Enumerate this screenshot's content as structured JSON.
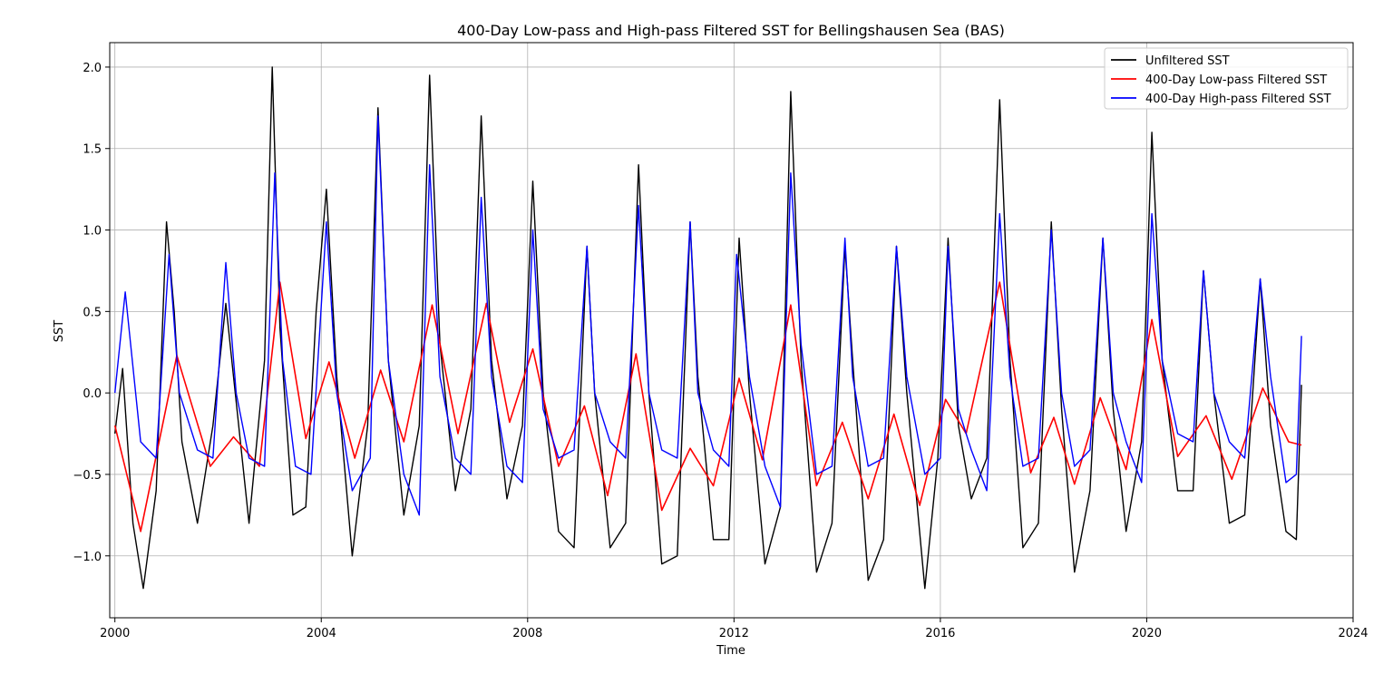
{
  "chart_data": {
    "type": "line",
    "title": "400-Day Low-pass and High-pass Filtered SST for Bellingshausen Sea (BAS)",
    "xlabel": "Time",
    "ylabel": "SST",
    "xlim": [
      1999.9,
      2024
    ],
    "ylim": [
      -1.38,
      2.15
    ],
    "xticks": [
      2000,
      2004,
      2008,
      2012,
      2016,
      2020,
      2024
    ],
    "xtick_labels": [
      "2000",
      "2004",
      "2008",
      "2012",
      "2016",
      "2020",
      "2024"
    ],
    "yticks": [
      -1.0,
      -0.5,
      0.0,
      0.5,
      1.0,
      1.5,
      2.0
    ],
    "ytick_labels": [
      "−1.0",
      "−0.5",
      "0.0",
      "0.5",
      "1.0",
      "1.5",
      "2.0"
    ],
    "grid": true,
    "legend_position": "upper-right",
    "series": [
      {
        "name": "Unfiltered SST",
        "color": "#000000",
        "x": [
          2000.0,
          2000.15,
          2000.35,
          2000.55,
          2000.8,
          2001.0,
          2001.15,
          2001.3,
          2001.6,
          2001.9,
          2002.15,
          2002.3,
          2002.6,
          2002.9,
          2003.05,
          2003.2,
          2003.45,
          2003.7,
          2003.9,
          2004.1,
          2004.3,
          2004.6,
          2004.9,
          2005.1,
          2005.3,
          2005.6,
          2005.9,
          2006.1,
          2006.3,
          2006.6,
          2006.9,
          2007.1,
          2007.3,
          2007.6,
          2007.9,
          2008.1,
          2008.3,
          2008.6,
          2008.9,
          2009.15,
          2009.3,
          2009.6,
          2009.9,
          2010.15,
          2010.35,
          2010.6,
          2010.9,
          2011.15,
          2011.3,
          2011.6,
          2011.9,
          2012.1,
          2012.3,
          2012.6,
          2012.9,
          2013.1,
          2013.3,
          2013.6,
          2013.9,
          2014.15,
          2014.3,
          2014.6,
          2014.9,
          2015.15,
          2015.35,
          2015.7,
          2015.95,
          2016.15,
          2016.35,
          2016.6,
          2016.9,
          2017.15,
          2017.35,
          2017.6,
          2017.9,
          2018.15,
          2018.35,
          2018.6,
          2018.9,
          2019.15,
          2019.35,
          2019.6,
          2019.9,
          2020.1,
          2020.3,
          2020.6,
          2020.9,
          2021.1,
          2021.3,
          2021.6,
          2021.9,
          2022.2,
          2022.4,
          2022.7,
          2022.9,
          2023.0
        ],
        "values": [
          -0.25,
          0.15,
          -0.8,
          -1.2,
          -0.6,
          1.05,
          0.5,
          -0.3,
          -0.8,
          -0.2,
          0.55,
          0.1,
          -0.8,
          0.2,
          2.0,
          0.4,
          -0.75,
          -0.7,
          0.5,
          1.25,
          0.1,
          -1.0,
          -0.2,
          1.75,
          0.2,
          -0.75,
          -0.2,
          1.95,
          0.3,
          -0.6,
          -0.1,
          1.7,
          0.2,
          -0.65,
          -0.2,
          1.3,
          0.0,
          -0.85,
          -0.95,
          0.9,
          0.0,
          -0.95,
          -0.8,
          1.4,
          0.0,
          -1.05,
          -1.0,
          1.05,
          0.1,
          -0.9,
          -0.9,
          0.95,
          0.0,
          -1.05,
          -0.7,
          1.85,
          0.2,
          -1.1,
          -0.8,
          0.9,
          0.2,
          -1.15,
          -0.9,
          0.9,
          0.0,
          -1.2,
          -0.4,
          0.95,
          -0.2,
          -0.65,
          -0.4,
          1.8,
          0.2,
          -0.95,
          -0.8,
          1.05,
          -0.1,
          -1.1,
          -0.6,
          0.95,
          -0.1,
          -0.85,
          -0.3,
          1.6,
          0.2,
          -0.6,
          -0.6,
          0.75,
          0.0,
          -0.8,
          -0.75,
          0.7,
          -0.2,
          -0.85,
          -0.9,
          0.05
        ]
      },
      {
        "name": "400-Day Low-pass Filtered SST",
        "color": "#ff0000",
        "x": [
          2000.0,
          2000.5,
          2001.2,
          2001.85,
          2002.3,
          2002.8,
          2003.2,
          2003.7,
          2004.15,
          2004.65,
          2005.15,
          2005.6,
          2006.15,
          2006.65,
          2007.2,
          2007.65,
          2008.1,
          2008.6,
          2009.1,
          2009.55,
          2010.1,
          2010.6,
          2011.15,
          2011.6,
          2012.1,
          2012.55,
          2013.1,
          2013.6,
          2014.1,
          2014.6,
          2015.1,
          2015.6,
          2016.1,
          2016.5,
          2017.15,
          2017.75,
          2018.2,
          2018.6,
          2019.1,
          2019.6,
          2020.1,
          2020.6,
          2021.15,
          2021.65,
          2022.25,
          2022.75,
          2023.0
        ],
        "values": [
          -0.2,
          -0.85,
          0.23,
          -0.45,
          -0.27,
          -0.45,
          0.68,
          -0.28,
          0.19,
          -0.4,
          0.14,
          -0.3,
          0.54,
          -0.25,
          0.55,
          -0.18,
          0.27,
          -0.45,
          -0.08,
          -0.63,
          0.24,
          -0.72,
          -0.34,
          -0.57,
          0.09,
          -0.41,
          0.54,
          -0.57,
          -0.18,
          -0.65,
          -0.13,
          -0.69,
          -0.04,
          -0.25,
          0.68,
          -0.49,
          -0.15,
          -0.56,
          -0.03,
          -0.47,
          0.45,
          -0.39,
          -0.14,
          -0.53,
          0.03,
          -0.3,
          -0.32
        ]
      },
      {
        "name": "400-Day High-pass Filtered SST",
        "color": "#0000ff",
        "x": [
          2000.0,
          2000.2,
          2000.5,
          2000.8,
          2001.05,
          2001.25,
          2001.6,
          2001.9,
          2002.15,
          2002.35,
          2002.6,
          2002.9,
          2003.1,
          2003.25,
          2003.5,
          2003.8,
          2004.1,
          2004.3,
          2004.6,
          2004.95,
          2005.1,
          2005.3,
          2005.6,
          2005.9,
          2006.1,
          2006.3,
          2006.6,
          2006.9,
          2007.1,
          2007.3,
          2007.6,
          2007.9,
          2008.1,
          2008.3,
          2008.6,
          2008.9,
          2009.15,
          2009.3,
          2009.6,
          2009.9,
          2010.15,
          2010.35,
          2010.6,
          2010.9,
          2011.15,
          2011.3,
          2011.6,
          2011.9,
          2012.05,
          2012.3,
          2012.6,
          2012.9,
          2013.1,
          2013.3,
          2013.6,
          2013.9,
          2014.15,
          2014.3,
          2014.6,
          2014.9,
          2015.15,
          2015.35,
          2015.7,
          2016.0,
          2016.15,
          2016.35,
          2016.6,
          2016.9,
          2017.15,
          2017.35,
          2017.6,
          2017.9,
          2018.15,
          2018.35,
          2018.6,
          2018.9,
          2019.15,
          2019.35,
          2019.6,
          2019.9,
          2020.1,
          2020.3,
          2020.6,
          2020.9,
          2021.1,
          2021.3,
          2021.6,
          2021.9,
          2022.2,
          2022.4,
          2022.7,
          2022.9,
          2023.0
        ],
        "values": [
          0.0,
          0.62,
          -0.3,
          -0.4,
          0.85,
          0.0,
          -0.35,
          -0.4,
          0.8,
          0.0,
          -0.4,
          -0.45,
          1.35,
          0.2,
          -0.45,
          -0.5,
          1.05,
          0.0,
          -0.6,
          -0.4,
          1.7,
          0.2,
          -0.5,
          -0.75,
          1.4,
          0.1,
          -0.4,
          -0.5,
          1.2,
          0.1,
          -0.45,
          -0.55,
          1.0,
          -0.1,
          -0.4,
          -0.35,
          0.9,
          0.0,
          -0.3,
          -0.4,
          1.15,
          0.0,
          -0.35,
          -0.4,
          1.05,
          0.0,
          -0.35,
          -0.45,
          0.85,
          0.1,
          -0.45,
          -0.7,
          1.35,
          0.3,
          -0.5,
          -0.45,
          0.95,
          0.1,
          -0.45,
          -0.4,
          0.9,
          0.1,
          -0.5,
          -0.4,
          0.9,
          -0.1,
          -0.35,
          -0.6,
          1.1,
          0.1,
          -0.45,
          -0.4,
          1.0,
          0.0,
          -0.45,
          -0.35,
          0.95,
          0.0,
          -0.3,
          -0.55,
          1.1,
          0.2,
          -0.25,
          -0.3,
          0.75,
          0.0,
          -0.3,
          -0.4,
          0.7,
          0.1,
          -0.55,
          -0.5,
          0.35
        ]
      }
    ]
  }
}
